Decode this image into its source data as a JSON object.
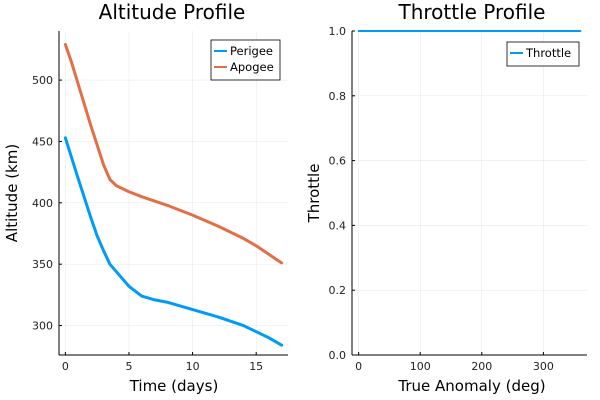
{
  "chart_data": [
    {
      "type": "line",
      "title": "Altitude Profile",
      "xlabel": "Time (days)",
      "ylabel": "Altitude (km)",
      "xlim": [
        -0.5,
        17.5
      ],
      "ylim": [
        276,
        540
      ],
      "xticks": [
        0,
        5,
        10,
        15
      ],
      "yticks": [
        300,
        350,
        400,
        450,
        500
      ],
      "grid": true,
      "legend_position": "top-right",
      "series": [
        {
          "name": "Perigee",
          "color": "#009af9",
          "x": [
            0,
            1,
            2,
            2.5,
            3,
            3.5,
            4,
            5,
            6,
            7,
            8,
            10,
            12,
            14,
            15,
            16,
            17
          ],
          "y": [
            453,
            420,
            388,
            373,
            361,
            350,
            344,
            332,
            324,
            321,
            319,
            313,
            307,
            300,
            295,
            290,
            284
          ]
        },
        {
          "name": "Apogee",
          "color": "#e26f46",
          "x": [
            0,
            0.5,
            1,
            1.5,
            2,
            2.5,
            3,
            3.5,
            4,
            5,
            6,
            8,
            10,
            12,
            14,
            15,
            16,
            17
          ],
          "y": [
            529,
            514,
            497,
            480,
            463,
            447,
            431,
            419,
            414,
            409,
            405,
            398,
            390,
            381,
            371,
            365,
            358,
            351
          ]
        }
      ]
    },
    {
      "type": "line",
      "title": "Throttle Profile",
      "xlabel": "True Anomaly (deg)",
      "ylabel": "Throttle",
      "xlim": [
        -10.8,
        370.8
      ],
      "ylim": [
        0,
        1
      ],
      "xticks": [
        0,
        100,
        200,
        300
      ],
      "yticks": [
        0.0,
        0.2,
        0.4,
        0.6,
        0.8,
        1.0
      ],
      "ytick_labels": [
        "0.0",
        "0.2",
        "0.4",
        "0.6",
        "0.8",
        "1.0"
      ],
      "grid": true,
      "legend_position": "top-right",
      "series": [
        {
          "name": "Throttle",
          "color": "#009af9",
          "x": [
            0,
            360
          ],
          "y": [
            1.0,
            1.0
          ]
        }
      ]
    }
  ]
}
